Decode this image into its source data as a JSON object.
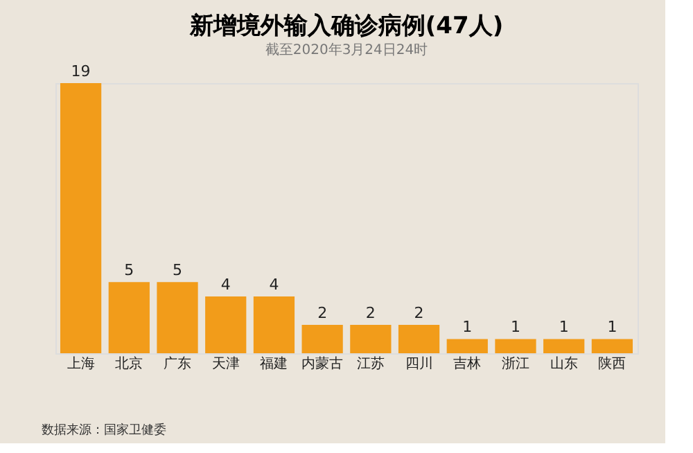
{
  "chart_data": {
    "type": "bar",
    "title": "新增境外输入确诊病例(47人)",
    "subtitle": "截至2020年3月24日24时",
    "categories": [
      "上海",
      "北京",
      "广东",
      "天津",
      "福建",
      "内蒙古",
      "江苏",
      "四川",
      "吉林",
      "浙江",
      "山东",
      "陕西"
    ],
    "values": [
      19,
      5,
      5,
      4,
      4,
      2,
      2,
      2,
      1,
      1,
      1,
      1
    ],
    "color": "#f29c1a",
    "data_labels": true,
    "annotations": [
      "数据来源：国家卫健委"
    ]
  }
}
